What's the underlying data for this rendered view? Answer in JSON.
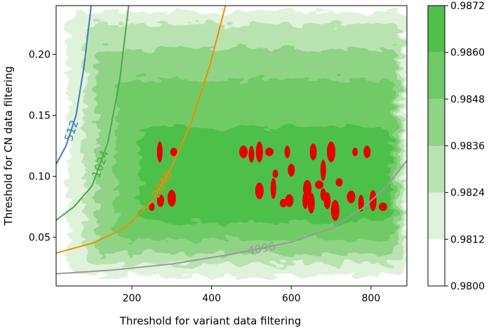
{
  "chart_data": {
    "type": "heatmap",
    "subtype": "filled-contour with overlaid contour lines",
    "title": "",
    "xlabel": "Threshold for variant data filtering",
    "ylabel": "Threshold for CN data filtering",
    "xlim": [
      10,
      890
    ],
    "ylim": [
      0.01,
      0.24
    ],
    "xticks": [
      200,
      400,
      600,
      800
    ],
    "xtick_labels": [
      "200",
      "400",
      "600",
      "800"
    ],
    "yticks": [
      0.05,
      0.1,
      0.15,
      0.2
    ],
    "ytick_labels": [
      "0.05",
      "0.10",
      "0.15",
      "0.20"
    ],
    "grid": false,
    "colorbar": {
      "levels": [
        0.98,
        0.9812,
        0.9824,
        0.9836,
        0.9848,
        0.986,
        0.9872
      ],
      "tick_labels": [
        "0.9800",
        "0.9812",
        "0.9824",
        "0.9836",
        "0.9848",
        "0.9860",
        "0.9872"
      ],
      "colors": [
        "#ffffff",
        "#dff2da",
        "#b8e3b0",
        "#8fd485",
        "#6fca66",
        "#4ec04a",
        "#e60000"
      ]
    },
    "contour_lines": [
      {
        "label": "512",
        "color": "#3b7dbd",
        "points": [
          [
            10,
            0.11
          ],
          [
            35,
            0.125
          ],
          [
            60,
            0.15
          ],
          [
            80,
            0.19
          ],
          [
            98,
            0.24
          ]
        ]
      },
      {
        "label": "1024",
        "color": "#4aaa48",
        "points": [
          [
            10,
            0.064
          ],
          [
            55,
            0.075
          ],
          [
            100,
            0.092
          ],
          [
            140,
            0.128
          ],
          [
            170,
            0.18
          ],
          [
            192,
            0.24
          ]
        ]
      },
      {
        "label": "2048",
        "color": "#f28c00",
        "points": [
          [
            10,
            0.037
          ],
          [
            100,
            0.045
          ],
          [
            180,
            0.057
          ],
          [
            250,
            0.079
          ],
          [
            300,
            0.108
          ],
          [
            350,
            0.145
          ],
          [
            395,
            0.19
          ],
          [
            435,
            0.24
          ]
        ]
      },
      {
        "label": "4096",
        "color": "#9a9a9a",
        "points": [
          [
            10,
            0.02
          ],
          [
            150,
            0.023
          ],
          [
            300,
            0.028
          ],
          [
            450,
            0.036
          ],
          [
            600,
            0.046
          ],
          [
            700,
            0.057
          ],
          [
            780,
            0.074
          ],
          [
            840,
            0.092
          ],
          [
            890,
            0.113
          ]
        ]
      }
    ],
    "peak_regions_above_0_9860": [
      [
        250,
        0.075
      ],
      [
        272,
        0.08
      ],
      [
        300,
        0.082
      ],
      [
        270,
        0.12
      ],
      [
        305,
        0.12
      ],
      [
        480,
        0.12
      ],
      [
        500,
        0.118
      ],
      [
        520,
        0.12
      ],
      [
        545,
        0.12
      ],
      [
        590,
        0.12
      ],
      [
        655,
        0.12
      ],
      [
        700,
        0.12
      ],
      [
        760,
        0.12
      ],
      [
        790,
        0.12
      ],
      [
        520,
        0.088
      ],
      [
        555,
        0.09
      ],
      [
        580,
        0.078
      ],
      [
        595,
        0.08
      ],
      [
        635,
        0.08
      ],
      [
        650,
        0.078
      ],
      [
        670,
        0.093
      ],
      [
        680,
        0.085
      ],
      [
        690,
        0.08
      ],
      [
        710,
        0.072
      ],
      [
        560,
        0.102
      ],
      [
        600,
        0.105
      ],
      [
        640,
        0.09
      ],
      [
        680,
        0.105
      ],
      [
        720,
        0.095
      ],
      [
        750,
        0.083
      ],
      [
        775,
        0.078
      ],
      [
        805,
        0.08
      ],
      [
        830,
        0.075
      ]
    ]
  }
}
